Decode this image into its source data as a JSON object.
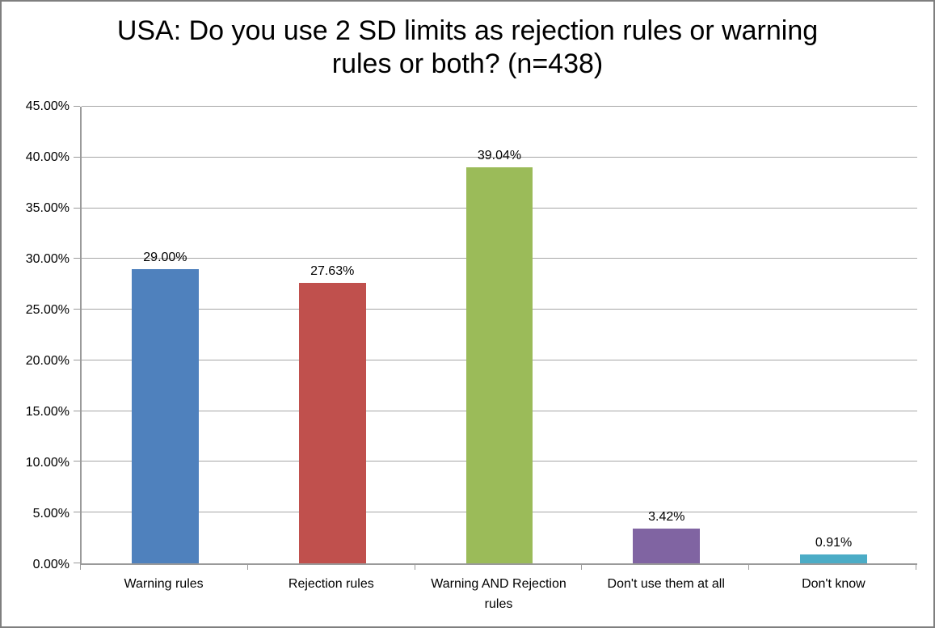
{
  "chart_data": {
    "type": "bar",
    "title": "USA: Do you use 2 SD limits as rejection rules or warning rules or both? (n=438)",
    "categories": [
      "Warning rules",
      "Rejection rules",
      "Warning AND Rejection rules",
      "Don't use them at all",
      "Don't know"
    ],
    "values": [
      29.0,
      27.63,
      39.04,
      3.42,
      0.91
    ],
    "data_labels": [
      "29.00%",
      "27.63%",
      "39.04%",
      "3.42%",
      "0.91%"
    ],
    "bar_colors": [
      "#4F81BD",
      "#C0504D",
      "#9BBB59",
      "#8064A2",
      "#4BACC6"
    ],
    "xlabel": "",
    "ylabel": "",
    "ylim": [
      0,
      45
    ],
    "y_tick_step": 5,
    "y_tick_labels": [
      "45.00%",
      "40.00%",
      "35.00%",
      "30.00%",
      "25.00%",
      "20.00%",
      "15.00%",
      "10.00%",
      "5.00%",
      "0.00%"
    ],
    "grid": "horizontal",
    "legend": "none",
    "axis_color": "#9A9A9A",
    "gridline_color": "#A6A6A6",
    "frame_border_color": "#7F7F7F",
    "background": "#FFFFFF"
  }
}
